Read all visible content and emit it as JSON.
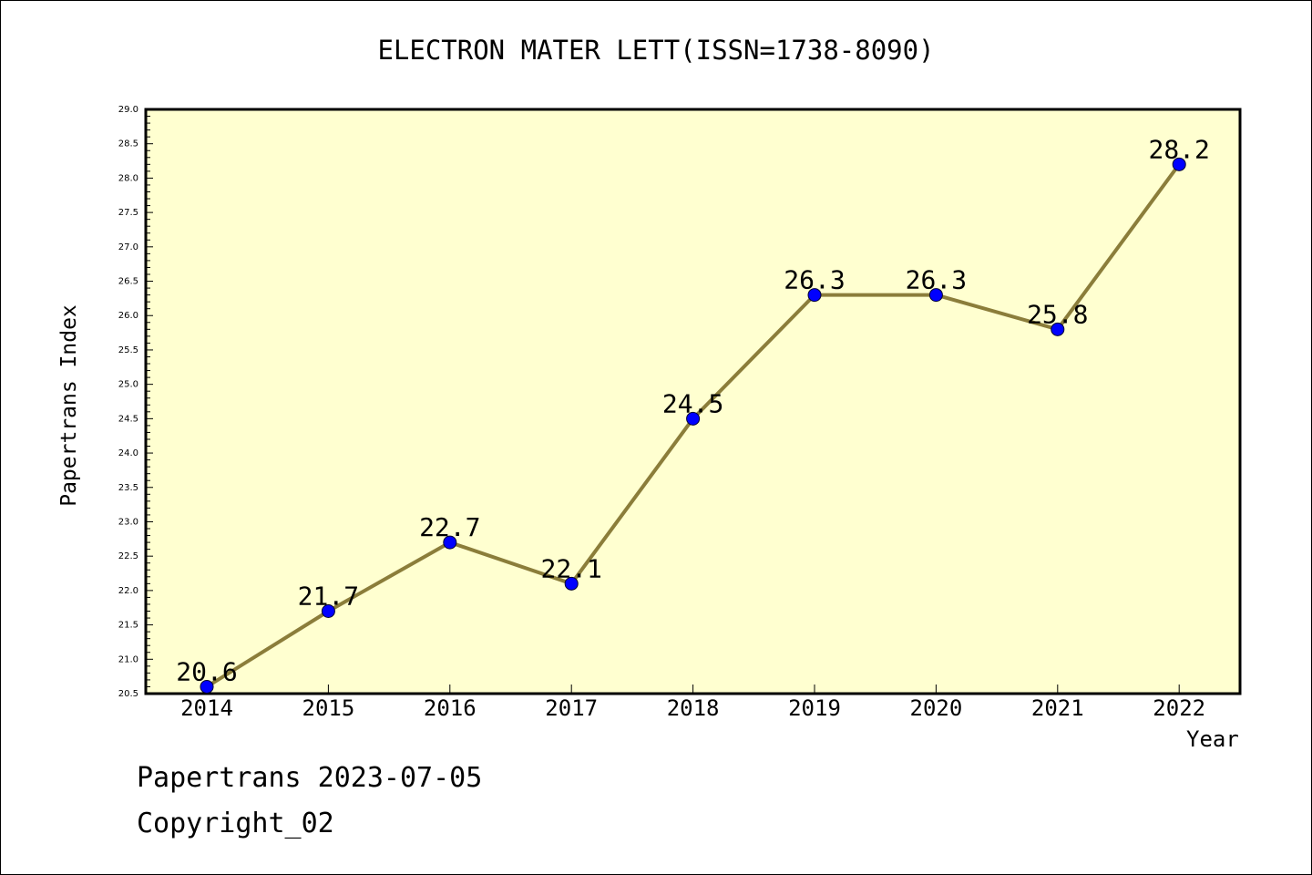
{
  "chart_data": {
    "type": "line",
    "title": "ELECTRON MATER LETT(ISSN=1738-8090)",
    "xlabel": "Year",
    "ylabel": "Papertrans Index",
    "categories": [
      "2014",
      "2015",
      "2016",
      "2017",
      "2018",
      "2019",
      "2020",
      "2021",
      "2022"
    ],
    "series": [
      {
        "values": [
          20.6,
          21.7,
          22.7,
          22.1,
          24.5,
          26.3,
          26.3,
          25.8,
          28.2
        ],
        "labels": [
          "20.6",
          "21.7",
          "22.7",
          "22.1",
          "24.5",
          "26.3",
          "26.3",
          "25.8",
          "28.2"
        ]
      }
    ],
    "ylim": [
      20.5,
      29.0
    ],
    "yticks": [
      "20.5",
      "21.0",
      "21.5",
      "22.0",
      "22.5",
      "23.0",
      "23.5",
      "24.0",
      "24.5",
      "25.0",
      "25.5",
      "26.0",
      "26.5",
      "27.0",
      "27.5",
      "28.0",
      "28.5",
      "29.0"
    ],
    "grid": false,
    "colors": {
      "line": "#8b7d3a",
      "marker": "#0000ff",
      "plot_background": "#ffffd0"
    }
  },
  "footer": {
    "date": "Papertrans 2023-07-05",
    "copyright": "Copyright_02"
  }
}
